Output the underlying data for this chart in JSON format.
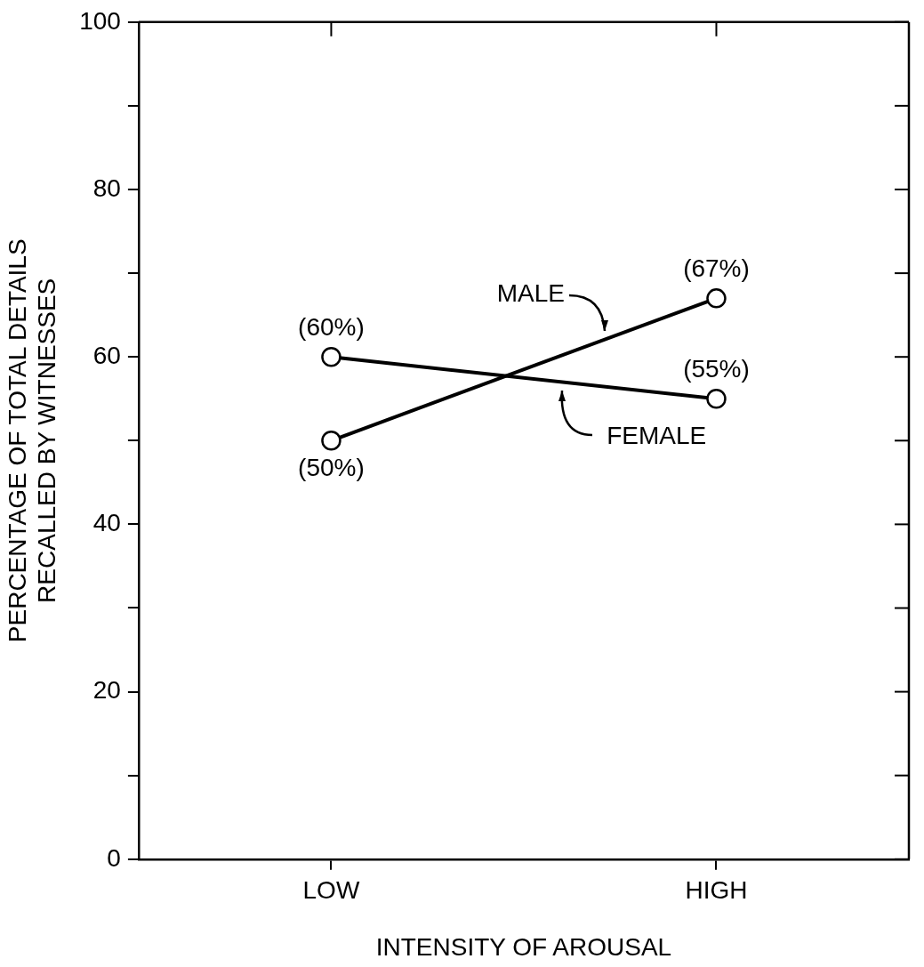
{
  "chart_data": {
    "type": "line",
    "xlabel": "INTENSITY OF AROUSAL",
    "ylabel": "PERCENTAGE OF TOTAL DETAILS\nRECALLED BY WITNESSES",
    "categories": [
      "LOW",
      "HIGH"
    ],
    "series": [
      {
        "name": "MALE",
        "color": "#000000",
        "values": [
          50,
          67
        ],
        "value_labels": [
          "(50%)",
          "(67%)"
        ]
      },
      {
        "name": "FEMALE",
        "color": "#000000",
        "values": [
          60,
          55
        ],
        "value_labels": [
          "(60%)",
          "(55%)"
        ]
      }
    ],
    "ylim": [
      0,
      100
    ],
    "yticks": [
      0,
      {
        "value": 10,
        "label": null
      },
      20,
      {
        "value": 30,
        "label": null
      },
      40,
      {
        "value": 50,
        "label": null
      },
      60,
      {
        "value": 70,
        "label": null
      },
      80,
      {
        "value": 90,
        "label": null
      },
      100
    ],
    "grid": false,
    "legend": false,
    "marker": "circle",
    "line_style": "solid"
  }
}
